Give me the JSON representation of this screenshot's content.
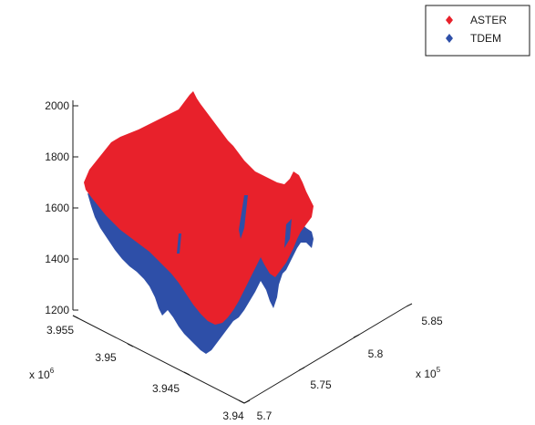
{
  "chart_data": {
    "type": "scatter",
    "projection": "3d",
    "series": [
      {
        "name": "ASTER",
        "color": "#e8212b",
        "marker": "diamond"
      },
      {
        "name": "TDEM",
        "color": "#2e4fa8",
        "marker": "diamond"
      }
    ],
    "legend_position": "top-right",
    "grid": false,
    "zlim": [
      1200,
      2000
    ],
    "z_ticks": [
      "1200",
      "1400",
      "1600",
      "1800",
      "2000"
    ],
    "y_ticks": [
      "3.94",
      "3.945",
      "3.95",
      "3.955"
    ],
    "y_exponent": {
      "base": "x 10",
      "power": "6"
    },
    "x_ticks": [
      "5.7",
      "5.75",
      "5.8",
      "5.85"
    ],
    "x_exponent": {
      "base": "x 10",
      "power": "5"
    }
  }
}
